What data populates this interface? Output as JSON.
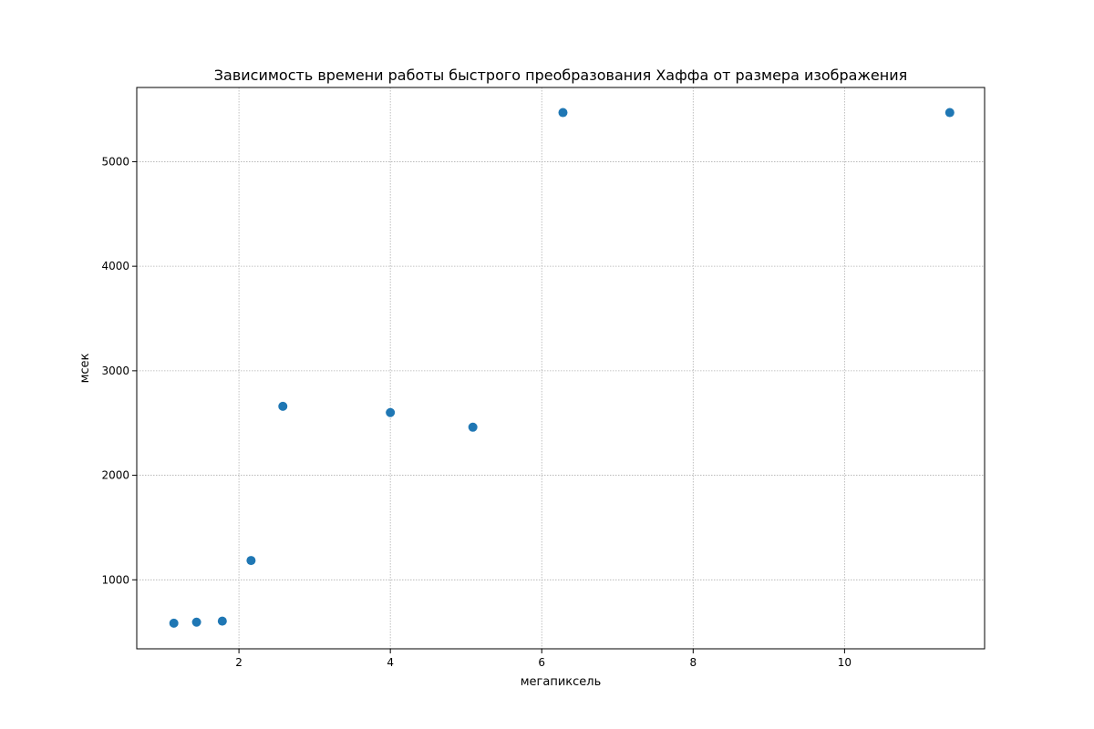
{
  "chart_data": {
    "type": "scatter",
    "title": "Зависимость времени работы быстрого преобразования Хаффа от размера изображения",
    "xlabel": "мегапиксель",
    "ylabel": "мсек",
    "xlim": [
      0.65,
      11.85
    ],
    "ylim": [
      340,
      5710
    ],
    "x_ticks": [
      2,
      4,
      6,
      8,
      10
    ],
    "y_ticks": [
      1000,
      2000,
      3000,
      4000,
      5000
    ],
    "grid": true,
    "marker_color": "#1f77b4",
    "points": [
      {
        "x": 1.14,
        "y": 585
      },
      {
        "x": 1.44,
        "y": 595
      },
      {
        "x": 1.78,
        "y": 605
      },
      {
        "x": 2.16,
        "y": 1185
      },
      {
        "x": 2.58,
        "y": 2660
      },
      {
        "x": 4.0,
        "y": 2600
      },
      {
        "x": 5.09,
        "y": 2460
      },
      {
        "x": 6.28,
        "y": 5470
      },
      {
        "x": 11.39,
        "y": 5470
      }
    ]
  }
}
